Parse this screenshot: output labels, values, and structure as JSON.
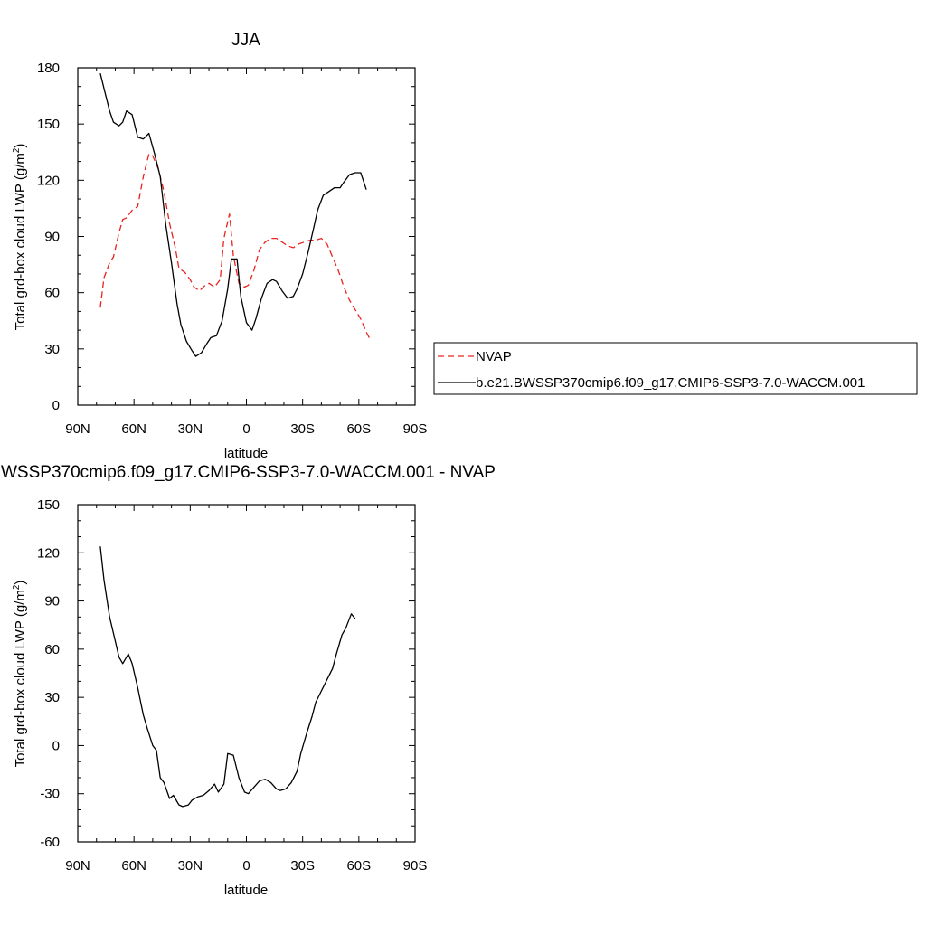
{
  "chart_data": [
    {
      "type": "line",
      "title": "JJA",
      "xlabel": "latitude",
      "ylabel": "Total grd-box cloud LWP (g/m",
      "ylabel_sup": "2",
      "ylabel_close": ")",
      "xlim": [
        90,
        -90
      ],
      "ylim": [
        0,
        180
      ],
      "xticks": [
        90,
        60,
        30,
        0,
        -30,
        -60,
        -90
      ],
      "xtick_labels": [
        "90N",
        "60N",
        "30N",
        "0",
        "30S",
        "60S",
        "90S"
      ],
      "yticks": [
        0,
        30,
        60,
        90,
        120,
        150,
        180
      ],
      "ytick_labels": [
        "0",
        "30",
        "60",
        "90",
        "120",
        "150",
        "180"
      ],
      "legend_position": "right",
      "series": [
        {
          "name": "NVAP",
          "color": "#e8241e",
          "dash": "dashed",
          "points": [
            [
              78,
              52
            ],
            [
              76,
              68
            ],
            [
              73,
              76
            ],
            [
              71,
              79
            ],
            [
              68,
              92
            ],
            [
              66,
              99
            ],
            [
              64,
              100
            ],
            [
              61,
              104
            ],
            [
              58,
              106
            ],
            [
              55,
              122
            ],
            [
              52,
              134
            ],
            [
              50,
              133
            ],
            [
              47,
              126
            ],
            [
              44,
              114
            ],
            [
              41,
              97
            ],
            [
              38,
              84
            ],
            [
              36,
              73
            ],
            [
              33,
              71
            ],
            [
              30,
              67
            ],
            [
              28,
              63
            ],
            [
              25,
              61
            ],
            [
              22,
              64
            ],
            [
              20,
              65
            ],
            [
              17,
              63
            ],
            [
              14,
              67
            ],
            [
              12,
              89
            ],
            [
              9,
              102
            ],
            [
              7,
              80
            ],
            [
              4,
              65
            ],
            [
              1,
              63
            ],
            [
              -1,
              64
            ],
            [
              -4,
              72
            ],
            [
              -7,
              83
            ],
            [
              -10,
              87
            ],
            [
              -13,
              89
            ],
            [
              -16,
              89
            ],
            [
              -19,
              87
            ],
            [
              -22,
              85
            ],
            [
              -25,
              84
            ],
            [
              -28,
              86
            ],
            [
              -31,
              87
            ],
            [
              -34,
              88
            ],
            [
              -37,
              88
            ],
            [
              -40,
              89
            ],
            [
              -43,
              86
            ],
            [
              -46,
              79
            ],
            [
              -49,
              72
            ],
            [
              -52,
              63
            ],
            [
              -55,
              56
            ],
            [
              -58,
              51
            ],
            [
              -61,
              46
            ],
            [
              -64,
              39
            ],
            [
              -66,
              35
            ]
          ]
        },
        {
          "name": "b.e21.BWSSP370cmip6.f09_g17.CMIP6-SSP3-7.0-WACCM.001",
          "color": "#000000",
          "dash": "solid",
          "points": [
            [
              78,
              177
            ],
            [
              76,
              169
            ],
            [
              73,
              157
            ],
            [
              71,
              151
            ],
            [
              68,
              149
            ],
            [
              66,
              151
            ],
            [
              64,
              157
            ],
            [
              61,
              155
            ],
            [
              58,
              143
            ],
            [
              55,
              142
            ],
            [
              52,
              145
            ],
            [
              49,
              134
            ],
            [
              46,
              122
            ],
            [
              43,
              96
            ],
            [
              40,
              76
            ],
            [
              37,
              54
            ],
            [
              35,
              43
            ],
            [
              32,
              34
            ],
            [
              29,
              29
            ],
            [
              27,
              26
            ],
            [
              24,
              28
            ],
            [
              21,
              33
            ],
            [
              19,
              36
            ],
            [
              16,
              37
            ],
            [
              13,
              45
            ],
            [
              10,
              62
            ],
            [
              8,
              78
            ],
            [
              5,
              78
            ],
            [
              3,
              58
            ],
            [
              0,
              44
            ],
            [
              -3,
              40
            ],
            [
              -5,
              46
            ],
            [
              -8,
              57
            ],
            [
              -11,
              65
            ],
            [
              -14,
              67
            ],
            [
              -16,
              66
            ],
            [
              -19,
              61
            ],
            [
              -22,
              57
            ],
            [
              -25,
              58
            ],
            [
              -27,
              62
            ],
            [
              -30,
              70
            ],
            [
              -33,
              82
            ],
            [
              -36,
              95
            ],
            [
              -38,
              104
            ],
            [
              -41,
              112
            ],
            [
              -44,
              114
            ],
            [
              -47,
              116
            ],
            [
              -50,
              116
            ],
            [
              -52,
              119
            ],
            [
              -55,
              123
            ],
            [
              -58,
              124
            ],
            [
              -61,
              124
            ],
            [
              -64,
              115
            ]
          ]
        }
      ]
    },
    {
      "type": "line",
      "title": "WSSP370cmip6.f09_g17.CMIP6-SSP3-7.0-WACCM.001 - NVAP",
      "xlabel": "latitude",
      "ylabel": "Total grd-box cloud LWP (g/m",
      "ylabel_sup": "2",
      "ylabel_close": ")",
      "xlim": [
        90,
        -90
      ],
      "ylim": [
        -60,
        150
      ],
      "xticks": [
        90,
        60,
        30,
        0,
        -30,
        -60,
        -90
      ],
      "xtick_labels": [
        "90N",
        "60N",
        "30N",
        "0",
        "30S",
        "60S",
        "90S"
      ],
      "yticks": [
        -60,
        -30,
        0,
        30,
        60,
        90,
        120,
        150
      ],
      "ytick_labels": [
        "-60",
        "-30",
        "0",
        "30",
        "60",
        "90",
        "120",
        "150"
      ],
      "series": [
        {
          "color": "#000000",
          "dash": "solid",
          "points": [
            [
              78,
              124
            ],
            [
              76,
              103
            ],
            [
              73,
              80
            ],
            [
              71,
              70
            ],
            [
              68,
              55
            ],
            [
              66,
              51
            ],
            [
              63,
              57
            ],
            [
              61,
              51
            ],
            [
              58,
              36
            ],
            [
              55,
              19
            ],
            [
              53,
              11
            ],
            [
              50,
              0
            ],
            [
              48,
              -3
            ],
            [
              46,
              -20
            ],
            [
              44,
              -23
            ],
            [
              41,
              -33
            ],
            [
              39,
              -31
            ],
            [
              36,
              -37
            ],
            [
              34,
              -38
            ],
            [
              31,
              -37
            ],
            [
              29,
              -34
            ],
            [
              26,
              -32
            ],
            [
              23,
              -31
            ],
            [
              20,
              -28
            ],
            [
              17,
              -24
            ],
            [
              15,
              -29
            ],
            [
              12,
              -24
            ],
            [
              10,
              -5
            ],
            [
              7,
              -6
            ],
            [
              4,
              -20
            ],
            [
              1,
              -29
            ],
            [
              -1,
              -30
            ],
            [
              -4,
              -26
            ],
            [
              -7,
              -22
            ],
            [
              -10,
              -21
            ],
            [
              -13,
              -23
            ],
            [
              -16,
              -27
            ],
            [
              -18,
              -28
            ],
            [
              -21,
              -27
            ],
            [
              -24,
              -23
            ],
            [
              -27,
              -16
            ],
            [
              -29,
              -5
            ],
            [
              -32,
              7
            ],
            [
              -35,
              18
            ],
            [
              -37,
              27
            ],
            [
              -40,
              34
            ],
            [
              -43,
              41
            ],
            [
              -46,
              48
            ],
            [
              -48,
              57
            ],
            [
              -51,
              69
            ],
            [
              -53,
              73
            ],
            [
              -56,
              82
            ],
            [
              -58,
              79
            ]
          ]
        }
      ]
    }
  ]
}
